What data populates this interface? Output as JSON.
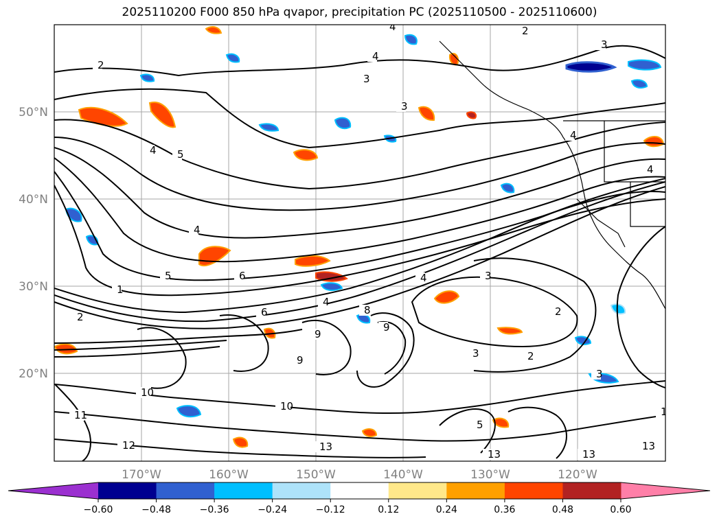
{
  "title": "2025110200 F000 850 hPa qvapor, precipitation PC (2025110500 - 2025110600)",
  "map": {
    "lon_ticks": [
      "170°W",
      "160°W",
      "150°W",
      "140°W",
      "130°W",
      "120°W"
    ],
    "lat_ticks": [
      "50°N",
      "40°N",
      "30°N",
      "20°N"
    ],
    "gridline_color": "#808080"
  },
  "contour_labels": [
    "2",
    "4",
    "3",
    "4",
    "4",
    "5",
    "3",
    "2",
    "4",
    "3",
    "4",
    "4",
    "6",
    "5",
    "6",
    "8",
    "9",
    "9",
    "10",
    "10",
    "11",
    "12",
    "13",
    "13",
    "13",
    "13",
    "1",
    "2",
    "3",
    "4",
    "3",
    "3",
    "2",
    "2",
    "1",
    "4",
    "5",
    "9"
  ],
  "colorbar": {
    "ticks": [
      "−0.60",
      "−0.48",
      "−0.36",
      "−0.24",
      "−0.12",
      "0.12",
      "0.24",
      "0.36",
      "0.48",
      "0.60"
    ],
    "under_color": "#9b30d0",
    "over_color": "#ff7fa8",
    "bin_colors": [
      "#000090",
      "#3060d0",
      "#00bfff",
      "#aee3fa",
      "#ffffff",
      "#ffe88a",
      "#ffa000",
      "#ff4500",
      "#b22222"
    ]
  },
  "precip_colors": {
    "pos_light": "#ffe88a",
    "pos_mid": "#ffa000",
    "pos_strong": "#ff4500",
    "pos_max": "#b22222",
    "neg_light": "#aee3fa",
    "neg_mid": "#00bfff",
    "neg_strong": "#3060d0",
    "neg_max": "#000090"
  }
}
